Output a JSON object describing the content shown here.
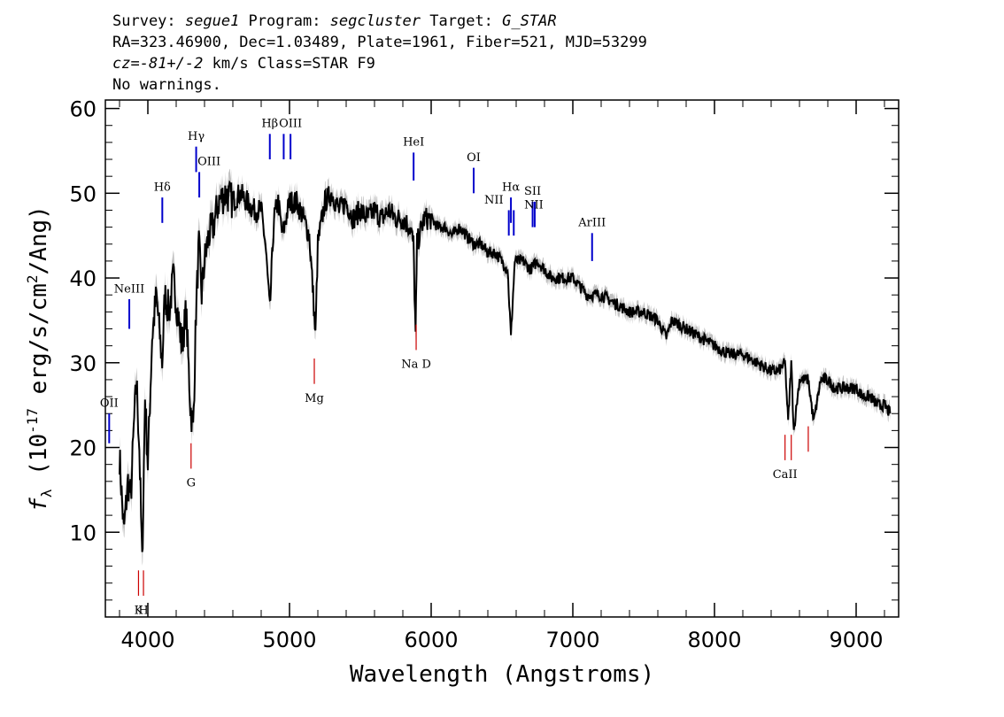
{
  "header": {
    "line1": [
      {
        "text": "Survey: ",
        "italic": false
      },
      {
        "text": "segue1",
        "italic": true
      },
      {
        "text": " Program: ",
        "italic": false
      },
      {
        "text": "segcluster",
        "italic": true
      },
      {
        "text": " Target: ",
        "italic": false
      },
      {
        "text": "G_STAR",
        "italic": true
      }
    ],
    "line2": "RA=323.46900, Dec=1.03489, Plate=1961, Fiber=521, MJD=53299",
    "line3": [
      {
        "text": "cz=",
        "italic": true
      },
      {
        "text": "-81+/-2",
        "italic": true
      },
      {
        "text": " km/s Class=STAR F9",
        "italic": false
      }
    ],
    "line4": "No warnings."
  },
  "colors": {
    "flux": "#000000",
    "error_band": "#c0c0c0",
    "emission_marker": "#0000cc",
    "absorption_marker": "#cc0000"
  },
  "chart_data": {
    "type": "line",
    "xlabel": "Wavelength (Angstroms)",
    "ylabel": "f_λ (10^-17 erg/s/cm^2/Ang)",
    "ylabel_parts": {
      "f": "f",
      "sub": "λ",
      "mid": " (10",
      "sup1": "-17",
      "mid2": " erg/s/cm",
      "sup2": "2",
      "end": "/Ang)"
    },
    "xlim": [
      3700,
      9300
    ],
    "ylim": [
      0,
      61
    ],
    "xticks": [
      4000,
      5000,
      6000,
      7000,
      8000,
      9000
    ],
    "yticks": [
      10,
      20,
      30,
      40,
      50,
      60
    ],
    "grid": false,
    "series": [
      {
        "x": [
          3800,
          3830,
          3860,
          3880,
          3900,
          3920,
          3940,
          3960,
          3980,
          4000,
          4030,
          4060,
          4080,
          4101,
          4120,
          4150,
          4180,
          4210,
          4240,
          4270,
          4300,
          4320,
          4340,
          4360,
          4380,
          4400,
          4430,
          4460,
          4500,
          4550,
          4600,
          4650,
          4700,
          4750,
          4800,
          4830,
          4861,
          4890,
          4920,
          4950,
          5000,
          5050,
          5100,
          5140,
          5167,
          5183,
          5200,
          5250,
          5300,
          5350,
          5400,
          5450,
          5500,
          5550,
          5600,
          5650,
          5700,
          5750,
          5800,
          5850,
          5875,
          5890,
          5900,
          5950,
          6000,
          6050,
          6100,
          6150,
          6200,
          6250,
          6300,
          6350,
          6400,
          6450,
          6500,
          6540,
          6563,
          6590,
          6650,
          6700,
          6750,
          6800,
          6850,
          6900,
          7000,
          7100,
          7200,
          7300,
          7400,
          7500,
          7600,
          7660,
          7700,
          7800,
          7900,
          8000,
          8100,
          8200,
          8300,
          8400,
          8450,
          8498,
          8520,
          8542,
          8560,
          8600,
          8662,
          8700,
          8750,
          8800,
          8850,
          8900,
          8950,
          9000,
          9050,
          9100,
          9150,
          9200,
          9240
        ],
        "y": [
          19,
          10,
          16,
          14,
          22,
          28,
          20,
          6,
          26,
          18,
          33,
          38,
          34,
          30,
          38,
          36,
          40,
          36,
          32,
          36,
          25,
          22,
          36,
          44,
          38,
          42,
          45,
          46,
          49,
          50,
          49,
          50,
          49,
          48,
          48,
          44,
          36,
          47,
          49,
          45,
          49,
          49,
          47,
          45,
          38,
          33,
          44,
          49,
          50,
          48,
          49,
          47,
          48,
          47,
          48,
          47,
          48,
          47,
          47,
          46,
          44,
          33,
          44,
          47,
          47,
          46,
          46,
          45,
          46,
          45,
          44,
          44,
          43,
          43,
          42,
          41,
          33,
          42,
          42,
          41,
          42,
          41,
          40,
          40,
          40,
          38,
          38,
          37,
          36,
          36,
          35,
          33,
          35,
          34,
          33,
          32,
          31,
          31,
          30,
          29,
          29,
          30,
          23,
          30,
          22,
          28,
          28,
          23,
          28,
          28,
          27,
          27,
          27,
          27,
          26,
          26,
          25,
          25,
          24
        ]
      }
    ],
    "annotations": [
      {
        "label": "OII",
        "wl": 3727,
        "kind": "emission",
        "y_bottom": 20.5,
        "y_top": 24.0,
        "label_y": 24.8,
        "label_pos": "top"
      },
      {
        "label": "NeIII",
        "wl": 3869,
        "kind": "emission",
        "y_bottom": 34.0,
        "y_top": 37.5,
        "label_y": 38.3,
        "label_pos": "top"
      },
      {
        "label": "Hδ",
        "wl": 4102,
        "kind": "emission",
        "y_bottom": 46.5,
        "y_top": 49.5,
        "label_y": 50.3,
        "label_pos": "top"
      },
      {
        "label": "Hγ",
        "wl": 4341,
        "kind": "emission",
        "y_bottom": 52.5,
        "y_top": 55.5,
        "label_y": 56.3,
        "label_pos": "top"
      },
      {
        "label": "OIII",
        "wl": 4363,
        "kind": "emission",
        "y_bottom": 49.5,
        "y_top": 52.5,
        "label_y": 53.3,
        "label_pos": "top-right"
      },
      {
        "label": "Hβ",
        "wl": 4861,
        "kind": "emission",
        "y_bottom": 54.0,
        "y_top": 57.0,
        "label_y": 57.8,
        "label_pos": "top"
      },
      {
        "label": "OIII",
        "wl": 4959,
        "kind": "emission",
        "y_bottom": 54.0,
        "y_top": 57.0,
        "label_y": 0,
        "label_pos": "none"
      },
      {
        "label": "OIII",
        "wl": 5007,
        "kind": "emission",
        "y_bottom": 54.0,
        "y_top": 57.0,
        "label_y": 57.8,
        "label_pos": "top"
      },
      {
        "label": "HeI",
        "wl": 5876,
        "kind": "emission",
        "y_bottom": 51.5,
        "y_top": 54.8,
        "label_y": 55.6,
        "label_pos": "top"
      },
      {
        "label": "OI",
        "wl": 6300,
        "kind": "emission",
        "y_bottom": 50.0,
        "y_top": 53.0,
        "label_y": 53.8,
        "label_pos": "top"
      },
      {
        "label": "NII",
        "wl": 6548,
        "kind": "emission",
        "y_bottom": 45.0,
        "y_top": 48.0,
        "label_y": 48.8,
        "label_pos": "left"
      },
      {
        "label": "Hα",
        "wl": 6563,
        "kind": "emission",
        "y_bottom": 46.5,
        "y_top": 49.5,
        "label_y": 50.3,
        "label_pos": "top"
      },
      {
        "label": "NII",
        "wl": 6583,
        "kind": "emission",
        "y_bottom": 45.0,
        "y_top": 48.0,
        "label_y": 0,
        "label_pos": "none"
      },
      {
        "label": "SII",
        "wl": 6716,
        "kind": "emission",
        "y_bottom": 46.0,
        "y_top": 49.0,
        "label_y": 49.8,
        "label_pos": "top"
      },
      {
        "label": "SII",
        "wl": 6731,
        "kind": "emission",
        "y_bottom": 46.0,
        "y_top": 49.0,
        "label_y": 0,
        "label_pos": "none"
      },
      {
        "label": "NII",
        "wl": 6725,
        "kind": "label-only",
        "y_bottom": 0,
        "y_top": 0,
        "label_y": 48.2,
        "label_pos": "top"
      },
      {
        "label": "ArIII",
        "wl": 7136,
        "kind": "emission",
        "y_bottom": 42.0,
        "y_top": 45.3,
        "label_y": 46.1,
        "label_pos": "top"
      },
      {
        "label": "K",
        "wl": 3934,
        "kind": "absorption",
        "y_bottom": 2.5,
        "y_top": 5.5,
        "label_y": 0.8,
        "label_pos": "bottom"
      },
      {
        "label": "H",
        "wl": 3969,
        "kind": "absorption",
        "y_bottom": 2.5,
        "y_top": 5.5,
        "label_y": 0.8,
        "label_pos": "bottom"
      },
      {
        "label": "G",
        "wl": 4305,
        "kind": "absorption",
        "y_bottom": 17.5,
        "y_top": 20.5,
        "label_y": 15.8,
        "label_pos": "bottom"
      },
      {
        "label": "Mg",
        "wl": 5175,
        "kind": "absorption",
        "y_bottom": 27.5,
        "y_top": 30.5,
        "label_y": 25.8,
        "label_pos": "bottom"
      },
      {
        "label": "Na D",
        "wl": 5894,
        "kind": "absorption",
        "y_bottom": 31.5,
        "y_top": 34.5,
        "label_y": 29.8,
        "label_pos": "bottom"
      },
      {
        "label": "CaII",
        "wl": 8498,
        "kind": "absorption",
        "y_bottom": 18.5,
        "y_top": 21.5,
        "label_y": 16.8,
        "label_pos": "bottom"
      },
      {
        "label": "",
        "wl": 8542,
        "kind": "absorption",
        "y_bottom": 18.5,
        "y_top": 21.5,
        "label_y": 0,
        "label_pos": "none"
      },
      {
        "label": "",
        "wl": 8662,
        "kind": "absorption",
        "y_bottom": 19.5,
        "y_top": 22.5,
        "label_y": 0,
        "label_pos": "none"
      }
    ]
  }
}
